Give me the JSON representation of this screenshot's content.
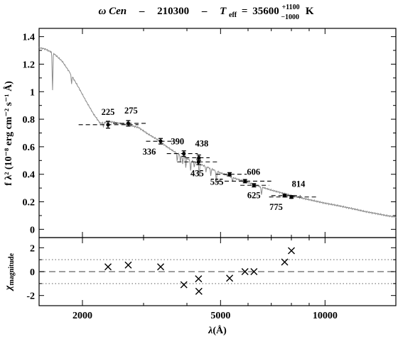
{
  "chart_data": {
    "type": "scatter",
    "title": {
      "object": "ω Cen",
      "id": "210300",
      "teff_symbol": "T",
      "teff_sub": "eff",
      "teff_value": "35600",
      "teff_err_up": "+1100",
      "teff_err_down": "−1000",
      "teff_unit": "K",
      "sep": "–"
    },
    "xscale": "log",
    "xlim": [
      1500,
      16000
    ],
    "xticks": [
      2000,
      5000,
      10000
    ],
    "xlabel": {
      "sym": "λ",
      "unit": "(Å)"
    },
    "top_panel": {
      "ylim": [
        -0.06,
        1.46
      ],
      "yticks": [
        "0",
        "0.2",
        "0.4",
        "0.6",
        "0.8",
        "1",
        "1.2",
        "1.4"
      ],
      "ylabel": "f λ² (10⁻⁸ erg cm⁻² s⁻¹ Å)",
      "photometry": [
        {
          "label": "225",
          "x": 2370,
          "y": 0.76,
          "err": 0.025,
          "xlo": 1950,
          "xhi": 2900
        },
        {
          "label": "275",
          "x": 2710,
          "y": 0.77,
          "err": 0.02,
          "xlo": 2450,
          "xhi": 3050
        },
        {
          "label": "336",
          "x": 3360,
          "y": 0.64,
          "err": 0.02,
          "xlo": 3050,
          "xhi": 3700
        },
        {
          "label": "390",
          "x": 3920,
          "y": 0.55,
          "err": 0.02,
          "xlo": 3500,
          "xhi": 4300
        },
        {
          "label": "438",
          "x": 4330,
          "y": 0.52,
          "err": 0.02,
          "xlo": 3950,
          "xhi": 4650
        },
        {
          "label": "435",
          "x": 4320,
          "y": 0.49,
          "err": 0.02,
          "xlo": 3750,
          "xhi": 4900
        },
        {
          "label": "555",
          "x": 5310,
          "y": 0.4,
          "err": 0.012,
          "xlo": 4850,
          "xhi": 5950
        },
        {
          "label": "606",
          "x": 5880,
          "y": 0.35,
          "err": 0.012,
          "xlo": 4900,
          "xhi": 7000
        },
        {
          "label": "625",
          "x": 6240,
          "y": 0.32,
          "err": 0.012,
          "xlo": 5700,
          "xhi": 6900
        },
        {
          "label": "775",
          "x": 7650,
          "y": 0.245,
          "err": 0.01,
          "xlo": 7000,
          "xhi": 8500
        },
        {
          "label": "814",
          "x": 8000,
          "y": 0.235,
          "err": 0.01,
          "xlo": 6900,
          "xhi": 9500
        }
      ],
      "model_spectrum": [
        [
          1500,
          1.32
        ],
        [
          1560,
          1.31
        ],
        [
          1650,
          1.28
        ],
        [
          1750,
          1.22
        ],
        [
          1850,
          1.13
        ],
        [
          1950,
          1.03
        ],
        [
          2050,
          0.93
        ],
        [
          2150,
          0.84
        ],
        [
          2250,
          0.77
        ],
        [
          2350,
          0.78
        ],
        [
          2450,
          0.78
        ],
        [
          2550,
          0.77
        ],
        [
          2700,
          0.76
        ],
        [
          2900,
          0.74
        ],
        [
          3100,
          0.69
        ],
        [
          3300,
          0.65
        ],
        [
          3500,
          0.6
        ],
        [
          3700,
          0.56
        ],
        [
          3900,
          0.53
        ],
        [
          4100,
          0.5
        ],
        [
          4300,
          0.48
        ],
        [
          4600,
          0.45
        ],
        [
          5000,
          0.41
        ],
        [
          5500,
          0.37
        ],
        [
          6000,
          0.34
        ],
        [
          6500,
          0.31
        ],
        [
          7000,
          0.285
        ],
        [
          7500,
          0.265
        ],
        [
          8000,
          0.245
        ],
        [
          9000,
          0.215
        ],
        [
          10000,
          0.19
        ],
        [
          11000,
          0.17
        ],
        [
          12000,
          0.15
        ],
        [
          13000,
          0.13
        ],
        [
          14000,
          0.115
        ],
        [
          15000,
          0.1
        ],
        [
          16000,
          0.09
        ]
      ],
      "absorption_lines": [
        [
          1640,
          0.27
        ],
        [
          1860,
          0.06
        ],
        [
          2300,
          0.03
        ],
        [
          3750,
          0.06
        ],
        [
          3830,
          0.05
        ],
        [
          3890,
          0.06
        ],
        [
          3970,
          0.07
        ],
        [
          4100,
          0.08
        ],
        [
          4200,
          0.04
        ],
        [
          4340,
          0.09
        ],
        [
          4540,
          0.04
        ],
        [
          4686,
          0.05
        ],
        [
          4861,
          0.09
        ],
        [
          5410,
          0.03
        ],
        [
          6560,
          0.06
        ]
      ]
    },
    "bottom_panel": {
      "ylim": [
        -2.85,
        2.85
      ],
      "yticks": [
        "-2",
        "0",
        "2"
      ],
      "ylabel": {
        "sym": "χ",
        "sub": "magnitude"
      },
      "reference_lines": [
        -1,
        0,
        1
      ],
      "residuals": [
        {
          "x": 2370,
          "y": 0.4
        },
        {
          "x": 2710,
          "y": 0.55
        },
        {
          "x": 3360,
          "y": 0.4
        },
        {
          "x": 3920,
          "y": -1.1
        },
        {
          "x": 4320,
          "y": -0.6
        },
        {
          "x": 4330,
          "y": -1.65
        },
        {
          "x": 5310,
          "y": -0.55
        },
        {
          "x": 5880,
          "y": 0.0
        },
        {
          "x": 6240,
          "y": 0.0
        },
        {
          "x": 7650,
          "y": 0.8
        },
        {
          "x": 8000,
          "y": 1.75
        }
      ]
    },
    "colors": {
      "axes": "#000000",
      "model": "#8a8a8a",
      "points": "#000000",
      "zero_line": "#7f7f7f",
      "dotted_lines": "#7f7f7f"
    }
  }
}
